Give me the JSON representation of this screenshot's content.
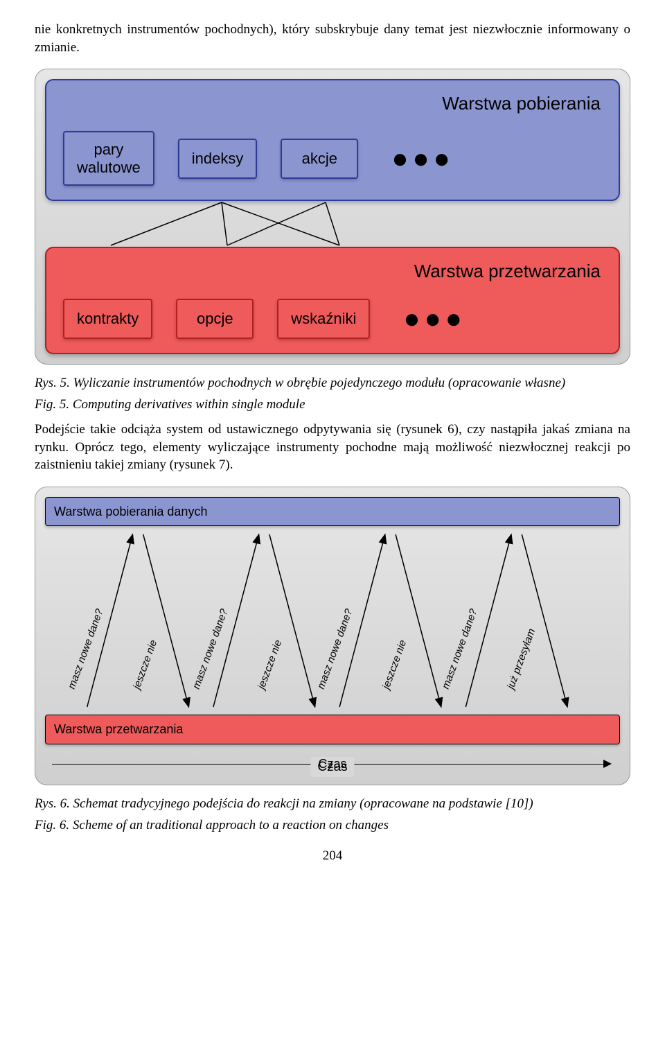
{
  "intro_text": "nie konkretnych instrumentów pochodnych), który subskrybuje dany temat jest niezwłocznie informowany o zmianie.",
  "fig5": {
    "caption_rys": "Rys. 5. Wyliczanie instrumentów pochodnych w obrębie pojedynczego modułu (opracowanie własne)",
    "caption_fig": "Fig. 5. Computing derivatives within single module",
    "layer1": {
      "title": "Warstwa pobierania",
      "bg": "#8b96d1",
      "border": "#2d3b97",
      "boxes": [
        "pary walutowe",
        "indeksy",
        "akcje"
      ],
      "box_border": "#2d3b97",
      "dots": "●●●"
    },
    "layer2": {
      "title": "Warstwa przetwarzania",
      "bg": "#ef5a5a",
      "border": "#b21f1f",
      "boxes": [
        "kontrakty",
        "opcje",
        "wskaźniki"
      ],
      "box_border": "#b21f1f",
      "dots": "●●●"
    },
    "connector_color": "#000000"
  },
  "mid_text": "Podejście takie odciąża system od ustawicznego odpytywania się (rysunek 6), czy nastąpiła jakaś zmiana na rynku. Oprócz tego, elementy wyliczające instrumenty pochodne mają możliwość niezwłocznej reakcji po zaistnieniu takiej zmiany (rysunek 7).",
  "fig6": {
    "bar_top": {
      "label": "Warstwa pobierania danych",
      "bg": "#8b96d1",
      "border": "#000000"
    },
    "bar_bottom": {
      "label": "Warstwa przetwarzania",
      "bg": "#ef5a5a",
      "border": "#000000"
    },
    "pairs": [
      {
        "up": "masz nowe dane?",
        "down": "jeszcze nie"
      },
      {
        "up": "masz nowe dane?",
        "down": "jeszcze nie"
      },
      {
        "up": "masz nowe dane?",
        "down": "jeszcze nie"
      },
      {
        "up": "masz nowe dane?",
        "down": "już przesyłam"
      }
    ],
    "time_label": "Czas",
    "arrow_color": "#000000"
  },
  "fig6_captions": {
    "caption_rys": "Rys. 6. Schemat tradycyjnego podejścia do reakcji na zmiany (opracowane na podstawie [10])",
    "caption_fig": "Fig. 6. Scheme of an traditional approach to a reaction on changes"
  },
  "page_number": "204"
}
